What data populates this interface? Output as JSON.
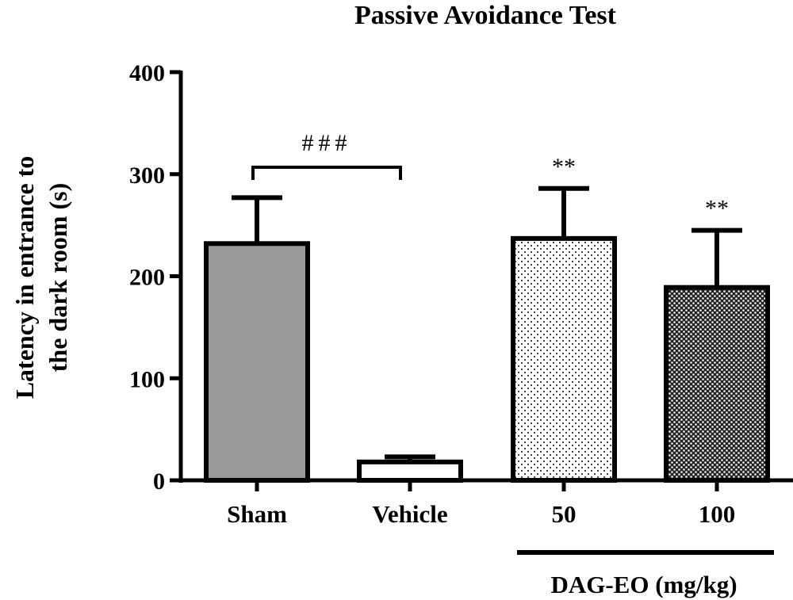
{
  "chart_data": {
    "type": "bar",
    "title": "Passive Avoidance Test",
    "ylabel_lines": [
      "Latency in entrance to",
      "the dark room (s)"
    ],
    "ylim": [
      0,
      400
    ],
    "yticks": [
      0,
      100,
      200,
      300,
      400
    ],
    "grid": false,
    "categories": [
      "Sham",
      "Vehicle",
      "50",
      "100"
    ],
    "values": [
      232,
      18,
      237,
      189
    ],
    "errors": [
      45,
      5,
      49,
      56
    ],
    "fills": [
      "#999999",
      "#ffffff",
      "dots-light",
      "dots-dense"
    ],
    "significance": {
      "bracket_label": "###",
      "bracket_between": [
        "Sham",
        "Vehicle"
      ],
      "bar_labels": [
        "",
        "",
        "**",
        "**"
      ]
    },
    "group_label": "DAG-EO (mg/kg)",
    "group_categories": [
      "50",
      "100"
    ]
  }
}
